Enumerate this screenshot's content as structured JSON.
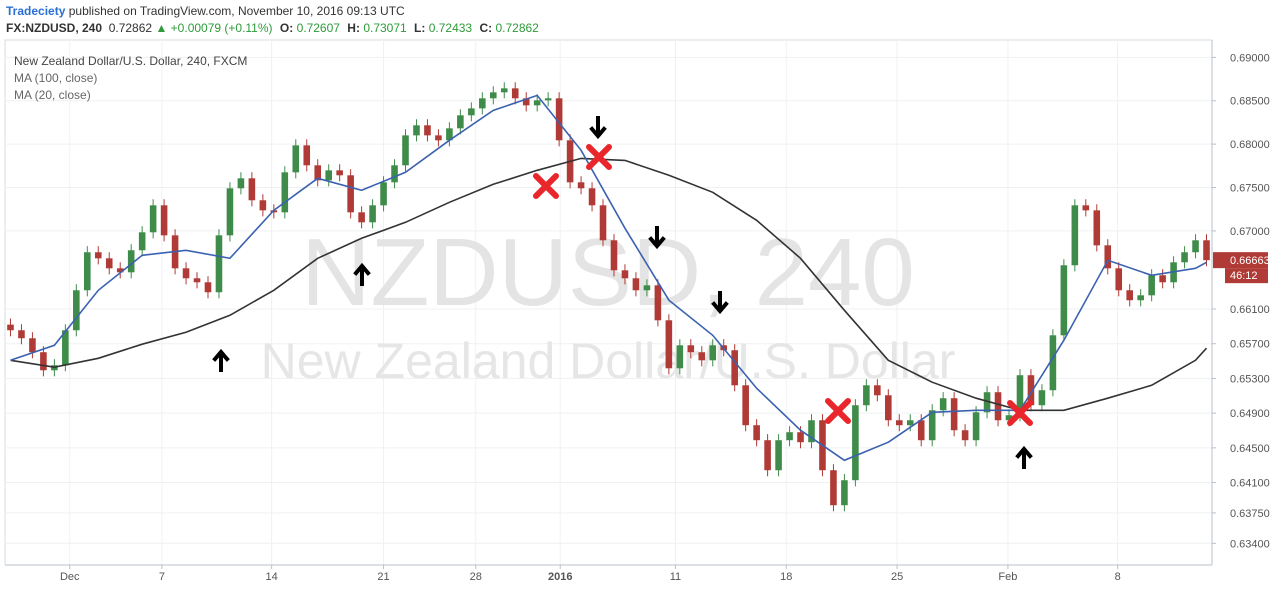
{
  "header": {
    "author": "Tradeciety",
    "published": "published on TradingView.com, November 10, 2016 09:13 UTC",
    "symbol": "FX:NZDUSD, 240",
    "price": "0.72862",
    "change": "+0.00079 (+0.11%)",
    "ohlc": [
      {
        "label": "O:",
        "value": "0.72607"
      },
      {
        "label": "H:",
        "value": "0.73071"
      },
      {
        "label": "L:",
        "value": "0.72433"
      },
      {
        "label": "C:",
        "value": "0.72862"
      }
    ]
  },
  "chart_data": {
    "type": "candlestick",
    "title": "New Zealand Dollar/U.S. Dollar, 240, FXCM",
    "watermark": "NZDUSD, 240",
    "watermark_subtitle": "New Zealand Dollar/U.S. Dollar",
    "up_color": "#3f8c4a",
    "down_color": "#b03a35",
    "open": [
      0.6592,
      0.65855,
      0.65763,
      0.65602,
      0.65394,
      0.65452,
      0.65855,
      0.66316,
      0.66754,
      0.66684,
      0.66569,
      0.66523,
      0.66777,
      0.66984,
      0.67295,
      0.66949,
      0.66569,
      0.66454,
      0.66408,
      0.66293,
      0.66949,
      0.67491,
      0.67606,
      0.67353,
      0.67237,
      0.67214,
      0.67675,
      0.67986,
      0.67756,
      0.67583,
      0.67698,
      0.67641,
      0.67214,
      0.67099,
      0.67295,
      0.6756,
      0.67756,
      0.68101,
      0.68217,
      0.68101,
      0.68044,
      0.68182,
      0.68332,
      0.68412,
      0.68528,
      0.68597,
      0.68643,
      0.68528,
      0.68447,
      0.68505,
      0.68528,
      0.68044,
      0.6756,
      0.67491,
      0.67295,
      0.66892,
      0.66546,
      0.66454,
      0.66316,
      0.66373,
      0.6597,
      0.65417,
      0.65682,
      0.65602,
      0.65509,
      0.65682,
      0.65625,
      0.65221,
      0.64761,
      0.64588,
      0.64242,
      0.64588,
      0.6468,
      0.64565,
      0.64818,
      0.64242,
      0.63839,
      0.64127,
      0.64991,
      0.65221,
      0.65106,
      0.64818,
      0.64761,
      0.64818,
      0.64588,
      0.64933,
      0.65072,
      0.64703,
      0.64588,
      0.6491,
      0.65141,
      0.64818,
      0.64876,
      0.65337,
      0.64991,
      0.65164,
      0.65797,
      0.66604,
      0.67295,
      0.67237,
      0.66834,
      0.66569,
      0.66316,
      0.66201,
      0.66258,
      0.66489,
      0.66408,
      0.66638,
      0.66754,
      0.66892
    ],
    "high": [
      0.6599,
      0.65925,
      0.65833,
      0.65672,
      0.65522,
      0.65925,
      0.66386,
      0.66824,
      0.66824,
      0.66754,
      0.66639,
      0.66847,
      0.67054,
      0.67365,
      0.67365,
      0.67019,
      0.66639,
      0.66524,
      0.66478,
      0.67019,
      0.67561,
      0.67676,
      0.67676,
      0.67423,
      0.67307,
      0.67745,
      0.68056,
      0.68056,
      0.67826,
      0.67768,
      0.67768,
      0.67711,
      0.67284,
      0.67365,
      0.6763,
      0.67826,
      0.68171,
      0.68287,
      0.68287,
      0.68171,
      0.68252,
      0.68402,
      0.68482,
      0.68598,
      0.68667,
      0.68713,
      0.68713,
      0.68598,
      0.68575,
      0.68598,
      0.68598,
      0.68114,
      0.6763,
      0.67561,
      0.67365,
      0.66962,
      0.66616,
      0.66524,
      0.66443,
      0.66443,
      0.6604,
      0.65752,
      0.65752,
      0.65672,
      0.65752,
      0.65752,
      0.65695,
      0.65291,
      0.64831,
      0.64658,
      0.64658,
      0.6475,
      0.6475,
      0.64888,
      0.64888,
      0.64312,
      0.64197,
      0.65061,
      0.65291,
      0.65291,
      0.65176,
      0.64888,
      0.64888,
      0.64888,
      0.65003,
      0.65142,
      0.65142,
      0.64773,
      0.6498,
      0.65211,
      0.65211,
      0.64946,
      0.65407,
      0.65407,
      0.65234,
      0.65867,
      0.66674,
      0.67365,
      0.67365,
      0.67307,
      0.66904,
      0.66639,
      0.66386,
      0.66328,
      0.66559,
      0.66559,
      0.66708,
      0.66824,
      0.66962,
      0.66962
    ],
    "low": [
      0.65785,
      0.65693,
      0.65532,
      0.65324,
      0.65324,
      0.65382,
      0.65785,
      0.66246,
      0.66614,
      0.66499,
      0.66453,
      0.66453,
      0.66707,
      0.66914,
      0.66879,
      0.66499,
      0.66384,
      0.66338,
      0.66223,
      0.66223,
      0.66879,
      0.67421,
      0.67283,
      0.67167,
      0.67144,
      0.67144,
      0.67605,
      0.67686,
      0.67513,
      0.67513,
      0.67571,
      0.67144,
      0.67029,
      0.67029,
      0.67225,
      0.6749,
      0.67686,
      0.68031,
      0.68031,
      0.67974,
      0.67974,
      0.68112,
      0.68262,
      0.68342,
      0.68458,
      0.68527,
      0.68458,
      0.68377,
      0.68377,
      0.68435,
      0.67974,
      0.6749,
      0.67421,
      0.67225,
      0.66822,
      0.66476,
      0.66384,
      0.66246,
      0.66246,
      0.659,
      0.65347,
      0.65347,
      0.65532,
      0.65439,
      0.65439,
      0.65555,
      0.65151,
      0.64691,
      0.64518,
      0.64172,
      0.64172,
      0.64518,
      0.64495,
      0.64495,
      0.64172,
      0.63769,
      0.63769,
      0.64057,
      0.64921,
      0.65036,
      0.64748,
      0.64691,
      0.64691,
      0.64518,
      0.64518,
      0.64863,
      0.64633,
      0.64518,
      0.64518,
      0.6484,
      0.64748,
      0.64748,
      0.64806,
      0.64921,
      0.64921,
      0.65094,
      0.65727,
      0.66534,
      0.67167,
      0.66764,
      0.66499,
      0.66246,
      0.66131,
      0.66131,
      0.66188,
      0.66338,
      0.66338,
      0.66568,
      0.66684,
      0.66593
    ],
    "close": [
      0.65855,
      0.65763,
      0.65602,
      0.65394,
      0.65452,
      0.65855,
      0.66316,
      0.66754,
      0.66684,
      0.66569,
      0.66523,
      0.66777,
      0.66984,
      0.67295,
      0.66949,
      0.66569,
      0.66454,
      0.66408,
      0.66293,
      0.66949,
      0.67491,
      0.67606,
      0.67353,
      0.67237,
      0.67214,
      0.67675,
      0.67986,
      0.67756,
      0.67583,
      0.67698,
      0.67641,
      0.67214,
      0.67099,
      0.67295,
      0.6756,
      0.67756,
      0.68101,
      0.68217,
      0.68101,
      0.68044,
      0.68182,
      0.68332,
      0.68412,
      0.68528,
      0.68597,
      0.68643,
      0.68528,
      0.68447,
      0.68505,
      0.68528,
      0.68044,
      0.6756,
      0.67491,
      0.67295,
      0.66892,
      0.66546,
      0.66454,
      0.66316,
      0.66373,
      0.6597,
      0.65417,
      0.65682,
      0.65602,
      0.65509,
      0.65682,
      0.65625,
      0.65221,
      0.64761,
      0.64588,
      0.64242,
      0.64588,
      0.6468,
      0.64565,
      0.64818,
      0.64242,
      0.63839,
      0.64127,
      0.64991,
      0.65221,
      0.65106,
      0.64818,
      0.64761,
      0.64818,
      0.64588,
      0.64933,
      0.65072,
      0.64703,
      0.64588,
      0.6491,
      0.65141,
      0.64818,
      0.64876,
      0.65337,
      0.64991,
      0.65164,
      0.65797,
      0.66604,
      0.67295,
      0.67237,
      0.66834,
      0.66569,
      0.66316,
      0.66201,
      0.66258,
      0.66489,
      0.66408,
      0.66638,
      0.66754,
      0.66892,
      0.66663
    ],
    "series": [
      {
        "name": "MA (100, close)",
        "color": "#333333",
        "x": [
          0,
          4,
          8,
          12,
          16,
          20,
          24,
          28,
          32,
          36,
          40,
          44,
          48,
          52,
          56,
          60,
          64,
          68,
          72,
          76,
          80,
          84,
          88,
          92,
          96,
          100,
          104,
          108,
          109
        ],
        "values": [
          0.65509,
          0.65429,
          0.65532,
          0.65694,
          0.65832,
          0.66028,
          0.66316,
          0.66684,
          0.66915,
          0.67099,
          0.6733,
          0.67537,
          0.67698,
          0.67836,
          0.67813,
          0.67641,
          0.67445,
          0.67122,
          0.66684,
          0.66085,
          0.65509,
          0.65256,
          0.65072,
          0.64933,
          0.64933,
          0.65072,
          0.65221,
          0.65509,
          0.65648
        ]
      },
      {
        "name": "MA (20, close)",
        "color": "#3b62b0",
        "x": [
          0,
          4,
          8,
          12,
          16,
          20,
          24,
          28,
          32,
          36,
          40,
          44,
          48,
          52,
          56,
          60,
          64,
          68,
          72,
          76,
          80,
          84,
          88,
          92,
          96,
          100,
          104,
          108,
          109
        ],
        "values": [
          0.65509,
          0.65682,
          0.66316,
          0.66719,
          0.66777,
          0.66684,
          0.67237,
          0.67606,
          0.67468,
          0.67675,
          0.68044,
          0.68389,
          0.68562,
          0.67929,
          0.6703,
          0.66201,
          0.65797,
          0.65187,
          0.64703,
          0.64357,
          0.64565,
          0.6491,
          0.64933,
          0.64933,
          0.6574,
          0.66661,
          0.66489,
          0.66569,
          0.66638
        ]
      }
    ],
    "xlim": [
      -0.5,
      109.5
    ],
    "xticks": [
      {
        "value": 5.4,
        "label": "Dec"
      },
      {
        "value": 13.8,
        "label": "7"
      },
      {
        "value": 23.8,
        "label": "14"
      },
      {
        "value": 34,
        "label": "21"
      },
      {
        "value": 42.4,
        "label": "28"
      },
      {
        "value": 50.1,
        "label": "2016"
      },
      {
        "value": 60.6,
        "label": "11"
      },
      {
        "value": 70.7,
        "label": "18"
      },
      {
        "value": 80.8,
        "label": "25"
      },
      {
        "value": 90.9,
        "label": "Feb"
      },
      {
        "value": 100.9,
        "label": "8"
      }
    ],
    "ylim": [
      0.6315,
      0.692
    ],
    "yticks": [
      {
        "value": 0.69,
        "label": "0.69000"
      },
      {
        "value": 0.685,
        "label": "0.68500"
      },
      {
        "value": 0.68,
        "label": "0.68000"
      },
      {
        "value": 0.675,
        "label": "0.67500"
      },
      {
        "value": 0.67,
        "label": "0.67000"
      },
      {
        "value": 0.661,
        "label": "0.66100"
      },
      {
        "value": 0.657,
        "label": "0.65700"
      },
      {
        "value": 0.653,
        "label": "0.65300"
      },
      {
        "value": 0.649,
        "label": "0.64900"
      },
      {
        "value": 0.645,
        "label": "0.64500"
      },
      {
        "value": 0.641,
        "label": "0.64100"
      },
      {
        "value": 0.6375,
        "label": "0.63750"
      },
      {
        "value": 0.634,
        "label": "0.63400"
      }
    ],
    "last_price": {
      "value": 0.66663,
      "label": "0.66663"
    },
    "countdown": "46:12",
    "grid": true
  }
}
